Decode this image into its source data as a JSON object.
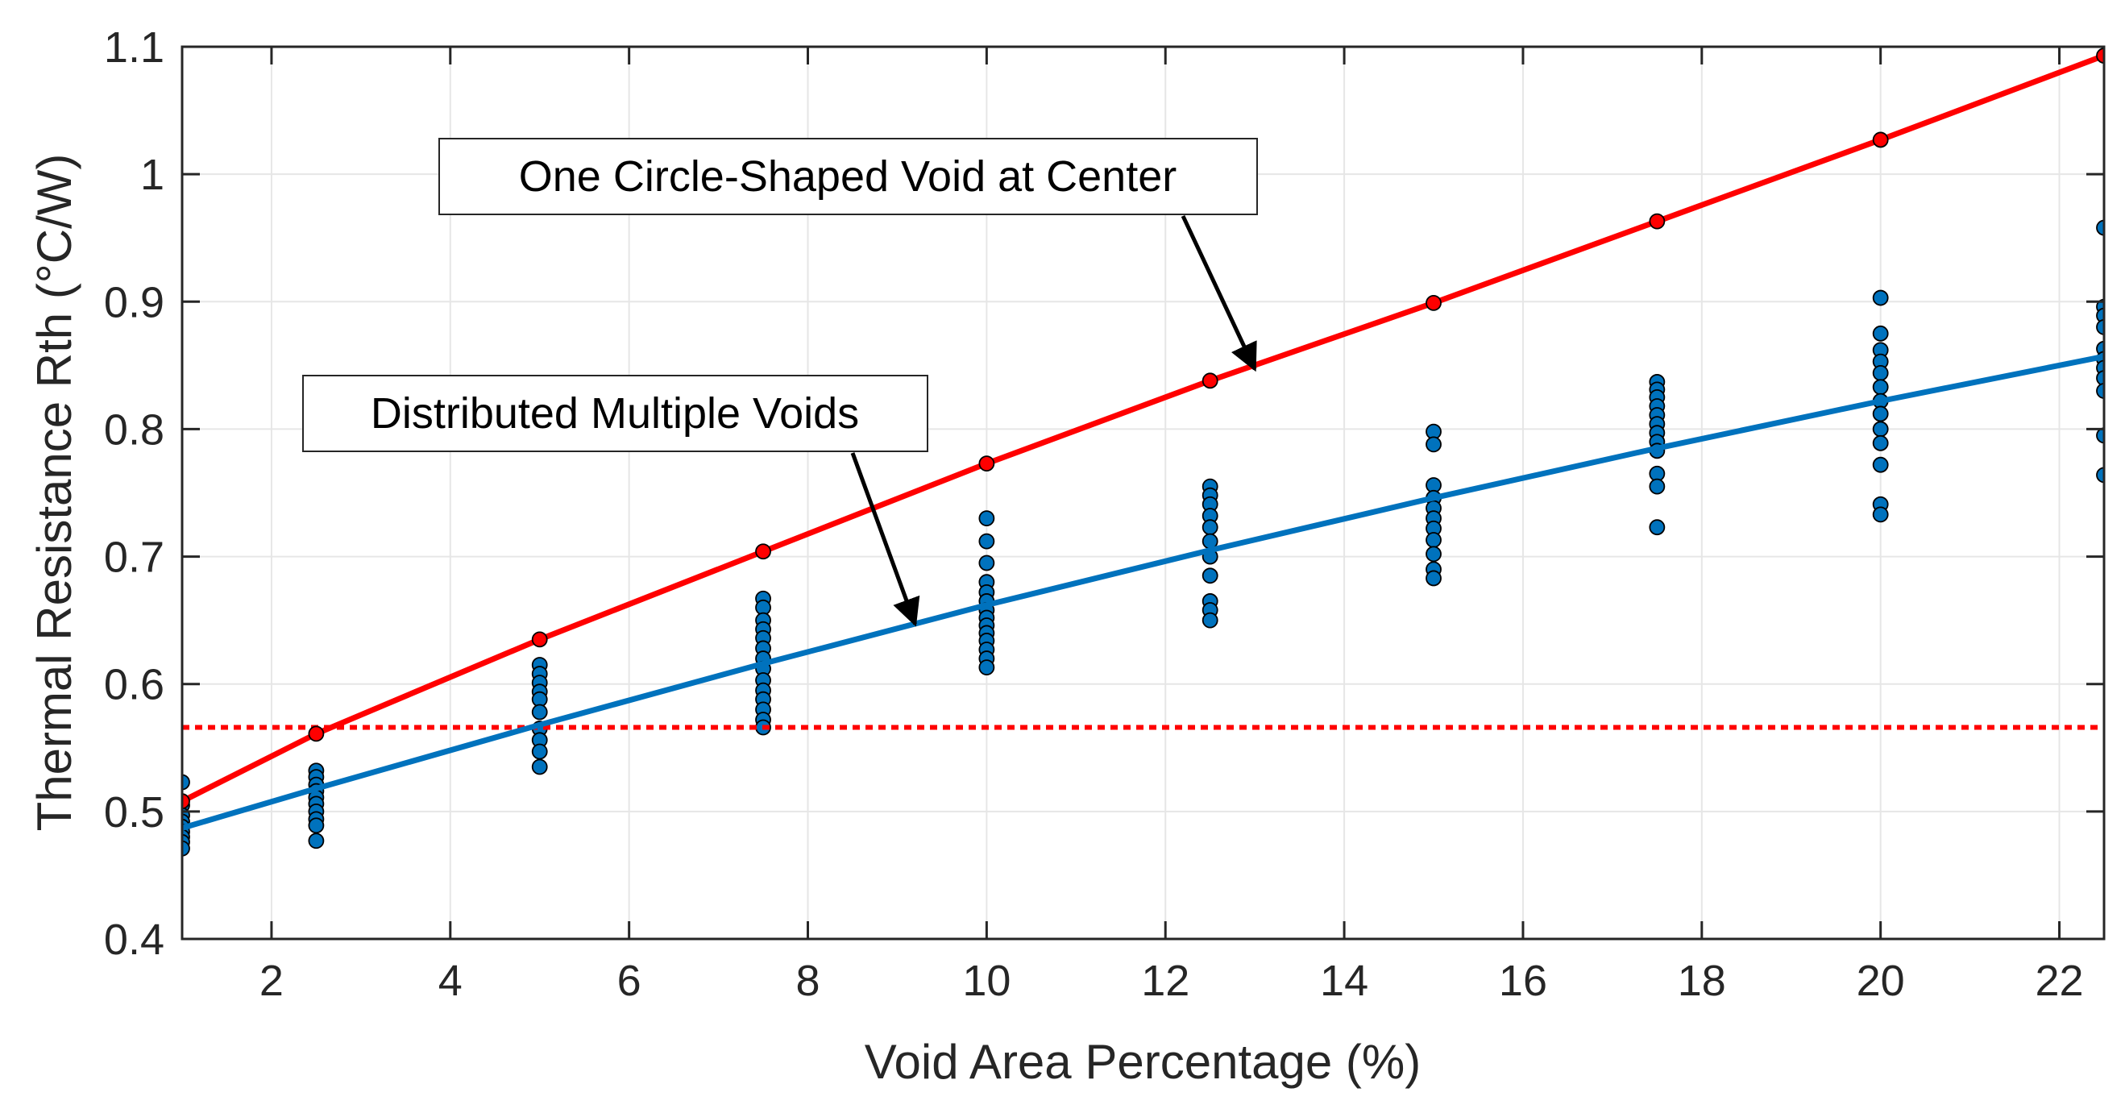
{
  "chart_data": {
    "type": "scatter",
    "xlabel": "Void Area Percentage (%)",
    "ylabel": "Thermal Resistance Rth (°C/W)",
    "xlim": [
      1,
      22.5
    ],
    "ylim": [
      0.4,
      1.1
    ],
    "xticks": [
      2,
      4,
      6,
      8,
      10,
      12,
      14,
      16,
      18,
      20,
      22
    ],
    "yticks": [
      0.4,
      0.5,
      0.6,
      0.7,
      0.8,
      0.9,
      1.0,
      1.1
    ],
    "xtick_labels": [
      "2",
      "4",
      "6",
      "8",
      "10",
      "12",
      "14",
      "16",
      "18",
      "20",
      "22"
    ],
    "ytick_labels": [
      "0.4",
      "0.5",
      "0.6",
      "0.7",
      "0.8",
      "0.9",
      "1",
      "1.1"
    ],
    "grid": true,
    "colors": {
      "red": "#ff0000",
      "blue": "#0072bd",
      "grid": "#e6e6e6"
    },
    "series": [
      {
        "kind": "line-markers",
        "color": "#ff0000",
        "x": [
          1,
          2.5,
          5,
          7.5,
          10,
          12.5,
          15,
          17.5,
          20,
          22.5
        ],
        "y": [
          0.508,
          0.561,
          0.635,
          0.704,
          0.773,
          0.838,
          0.899,
          0.963,
          1.027,
          1.093
        ]
      },
      {
        "kind": "line",
        "color": "#0072bd",
        "x": [
          1,
          2.5,
          5,
          7.5,
          10,
          12.5,
          15,
          17.5,
          20,
          22.5
        ],
        "y": [
          0.487,
          0.518,
          0.568,
          0.616,
          0.662,
          0.705,
          0.746,
          0.785,
          0.822,
          0.857
        ]
      },
      {
        "kind": "scatter",
        "color": "#0072bd",
        "points": [
          {
            "x": 1,
            "y": [
              0.523,
              0.505,
              0.497,
              0.492,
              0.488,
              0.484,
              0.48,
              0.476,
              0.471
            ]
          },
          {
            "x": 2.5,
            "y": [
              0.532,
              0.527,
              0.521,
              0.516,
              0.511,
              0.506,
              0.5,
              0.494,
              0.489,
              0.477
            ]
          },
          {
            "x": 5,
            "y": [
              0.615,
              0.608,
              0.601,
              0.594,
              0.588,
              0.578,
              0.565,
              0.556,
              0.547,
              0.535
            ]
          },
          {
            "x": 7.5,
            "y": [
              0.667,
              0.66,
              0.65,
              0.643,
              0.636,
              0.628,
              0.62,
              0.612,
              0.603,
              0.595,
              0.588,
              0.58,
              0.572,
              0.566
            ]
          },
          {
            "x": 10,
            "y": [
              0.73,
              0.712,
              0.695,
              0.68,
              0.672,
              0.665,
              0.658,
              0.652,
              0.646,
              0.64,
              0.634,
              0.627,
              0.62,
              0.613
            ]
          },
          {
            "x": 12.5,
            "y": [
              0.755,
              0.748,
              0.741,
              0.732,
              0.723,
              0.712,
              0.7,
              0.685,
              0.665,
              0.658,
              0.65
            ]
          },
          {
            "x": 15,
            "y": [
              0.798,
              0.788,
              0.756,
              0.746,
              0.738,
              0.73,
              0.722,
              0.713,
              0.702,
              0.69,
              0.683
            ]
          },
          {
            "x": 17.5,
            "y": [
              0.837,
              0.831,
              0.825,
              0.818,
              0.811,
              0.804,
              0.797,
              0.79,
              0.783,
              0.765,
              0.755,
              0.723
            ]
          },
          {
            "x": 20,
            "y": [
              0.903,
              0.875,
              0.862,
              0.853,
              0.844,
              0.833,
              0.822,
              0.812,
              0.8,
              0.789,
              0.772,
              0.741,
              0.733
            ]
          },
          {
            "x": 22.5,
            "y": [
              0.958,
              0.896,
              0.889,
              0.88,
              0.863,
              0.855,
              0.848,
              0.84,
              0.83,
              0.795,
              0.764
            ]
          }
        ]
      },
      {
        "kind": "dotted-hline",
        "color": "#ff0000",
        "y": 0.566
      }
    ],
    "annotations": [
      {
        "id": "circle-void",
        "text": "One Circle-Shaped Void at Center",
        "arrow_to": {
          "x": 13.0,
          "y": 0.847
        }
      },
      {
        "id": "distributed",
        "text": "Distributed Multiple Voids",
        "arrow_to": {
          "x": 9.2,
          "y": 0.647
        }
      }
    ]
  }
}
